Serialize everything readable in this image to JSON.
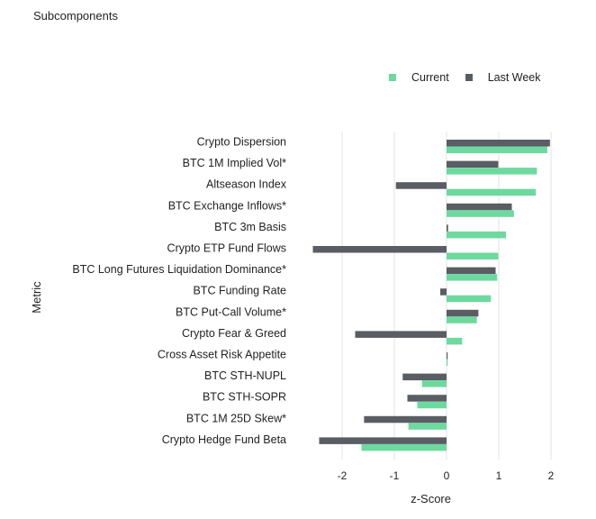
{
  "chart_data": {
    "type": "bar",
    "orientation": "horizontal",
    "title": "Subcomponents",
    "xlabel": "z-Score",
    "ylabel": "Metric",
    "xlim": [
      -2.5,
      2.1
    ],
    "xticks": [
      -2,
      -1,
      0,
      1,
      2
    ],
    "grid": true,
    "legend_position": "top-right",
    "categories": [
      "Crypto Dispersion",
      "BTC 1M Implied Vol*",
      "Altseason Index",
      "BTC Exchange Inflows*",
      "BTC 3m Basis",
      "Crypto ETP Fund Flows",
      "BTC Long Futures Liquidation Dominance*",
      "BTC Funding Rate",
      "BTC Put-Call Volume*",
      "Crypto Fear & Greed",
      "Cross Asset Risk Appetite",
      "BTC STH-NUPL",
      "BTC STH-SOPR",
      "BTC 1M 25D Skew*",
      "Crypto Hedge Fund Beta"
    ],
    "series": [
      {
        "name": "Current",
        "color": "#6dd99f",
        "values": [
          1.93,
          1.73,
          1.71,
          1.29,
          1.14,
          0.99,
          0.97,
          0.85,
          0.58,
          0.3,
          0.01,
          -0.47,
          -0.56,
          -0.73,
          -1.63
        ]
      },
      {
        "name": "Last Week",
        "color": "#5a5d63",
        "values": [
          1.98,
          0.99,
          -0.97,
          1.25,
          0.03,
          -2.56,
          0.94,
          -0.12,
          0.61,
          -1.75,
          0.02,
          -0.84,
          -0.75,
          -1.58,
          -2.44
        ]
      }
    ]
  }
}
